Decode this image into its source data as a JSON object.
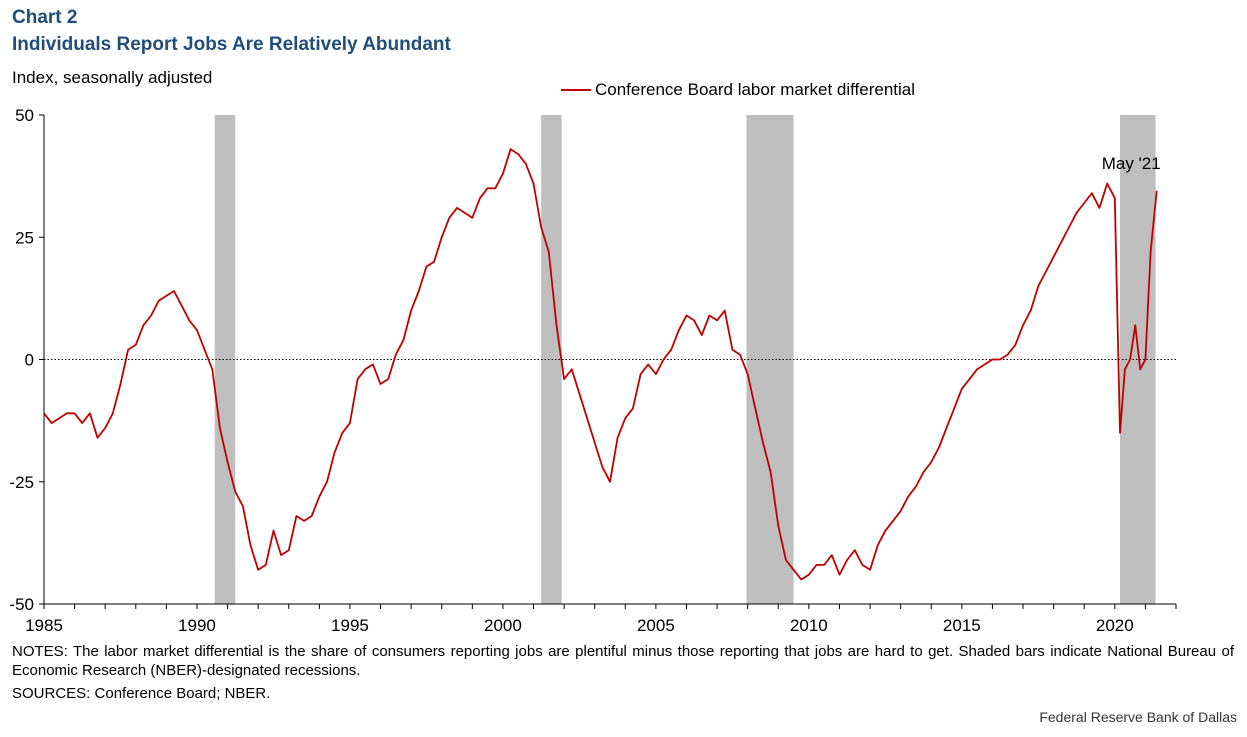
{
  "header": {
    "chart_number": "Chart 2",
    "title": "Individuals Report Jobs Are Relatively Abundant",
    "units": "Index, seasonally adjusted"
  },
  "legend": {
    "label": "Conference Board labor market differential"
  },
  "footer": {
    "notes": "NOTES: The labor market differential is the share of consumers reporting jobs are plentiful minus those reporting that jobs are hard to get. Shaded bars indicate National Bureau of Economic Research (NBER)-designated recessions.",
    "sources": "SOURCES: Conference Board; NBER.",
    "credit": "Federal Reserve Bank of Dallas"
  },
  "colors": {
    "series": "#c00000",
    "recession": "#bfbfbf",
    "title": "#1f4e79"
  },
  "chart_data": {
    "type": "line",
    "title": "Individuals Report Jobs Are Relatively Abundant",
    "ylabel": "Index, seasonally adjusted",
    "xlim": [
      1985,
      2022
    ],
    "ylim": [
      -50,
      50
    ],
    "yticks": [
      50,
      25,
      0,
      -25,
      -50
    ],
    "ytick_labels": [
      "50",
      "25",
      "0",
      "-25",
      "-50"
    ],
    "xticks": [
      1985,
      1990,
      1995,
      2000,
      2005,
      2010,
      2015,
      2020
    ],
    "xtick_labels": [
      "1985",
      "1990",
      "1995",
      "2000",
      "2005",
      "2010",
      "2015",
      "2020"
    ],
    "zero_line": true,
    "recessions": [
      {
        "start": 1990.58,
        "end": 1991.25
      },
      {
        "start": 2001.25,
        "end": 2001.92
      },
      {
        "start": 2007.96,
        "end": 2009.5
      },
      {
        "start": 2020.17,
        "end": 2021.33
      }
    ],
    "annotation": {
      "text": "May '21",
      "x": 2021.37,
      "y": 34.5
    },
    "series": [
      {
        "name": "Conference Board labor market differential",
        "x": [
          1985.0,
          1985.25,
          1985.5,
          1985.75,
          1986.0,
          1986.25,
          1986.5,
          1986.75,
          1987.0,
          1987.25,
          1987.5,
          1987.75,
          1988.0,
          1988.25,
          1988.5,
          1988.75,
          1989.0,
          1989.25,
          1989.5,
          1989.75,
          1990.0,
          1990.25,
          1990.5,
          1990.75,
          1991.0,
          1991.25,
          1991.5,
          1991.75,
          1992.0,
          1992.25,
          1992.5,
          1992.75,
          1993.0,
          1993.25,
          1993.5,
          1993.75,
          1994.0,
          1994.25,
          1994.5,
          1994.75,
          1995.0,
          1995.25,
          1995.5,
          1995.75,
          1996.0,
          1996.25,
          1996.5,
          1996.75,
          1997.0,
          1997.25,
          1997.5,
          1997.75,
          1998.0,
          1998.25,
          1998.5,
          1998.75,
          1999.0,
          1999.25,
          1999.5,
          1999.75,
          2000.0,
          2000.25,
          2000.5,
          2000.75,
          2001.0,
          2001.25,
          2001.5,
          2001.75,
          2002.0,
          2002.25,
          2002.5,
          2002.75,
          2003.0,
          2003.25,
          2003.5,
          2003.75,
          2004.0,
          2004.25,
          2004.5,
          2004.75,
          2005.0,
          2005.25,
          2005.5,
          2005.75,
          2006.0,
          2006.25,
          2006.5,
          2006.75,
          2007.0,
          2007.25,
          2007.5,
          2007.75,
          2008.0,
          2008.25,
          2008.5,
          2008.75,
          2009.0,
          2009.25,
          2009.5,
          2009.75,
          2010.0,
          2010.25,
          2010.5,
          2010.75,
          2011.0,
          2011.25,
          2011.5,
          2011.75,
          2012.0,
          2012.25,
          2012.5,
          2012.75,
          2013.0,
          2013.25,
          2013.5,
          2013.75,
          2014.0,
          2014.25,
          2014.5,
          2014.75,
          2015.0,
          2015.25,
          2015.5,
          2015.75,
          2016.0,
          2016.25,
          2016.5,
          2016.75,
          2017.0,
          2017.25,
          2017.5,
          2017.75,
          2018.0,
          2018.25,
          2018.5,
          2018.75,
          2019.0,
          2019.25,
          2019.5,
          2019.75,
          2020.0,
          2020.17,
          2020.33,
          2020.5,
          2020.67,
          2020.83,
          2021.0,
          2021.17,
          2021.37
        ],
        "y": [
          -11,
          -13,
          -12,
          -11,
          -11,
          -13,
          -11,
          -16,
          -14,
          -11,
          -5,
          2,
          3,
          7,
          9,
          12,
          13,
          14,
          11,
          8,
          6,
          2,
          -2,
          -14,
          -21,
          -27,
          -30,
          -38,
          -43,
          -42,
          -35,
          -40,
          -39,
          -32,
          -33,
          -32,
          -28,
          -25,
          -19,
          -15,
          -13,
          -4,
          -2,
          -1,
          -5,
          -4,
          1,
          4,
          10,
          14,
          19,
          20,
          25,
          29,
          31,
          30,
          29,
          33,
          35,
          35,
          38,
          43,
          42,
          40,
          36,
          27,
          22,
          7,
          -4,
          -2,
          -7,
          -12,
          -17,
          -22,
          -25,
          -16,
          -12,
          -10,
          -3,
          -1,
          -3,
          0,
          2,
          6,
          9,
          8,
          5,
          9,
          8,
          10,
          2,
          1,
          -3,
          -10,
          -17,
          -23,
          -34,
          -41,
          -43,
          -45,
          -44,
          -42,
          -42,
          -40,
          -44,
          -41,
          -39,
          -42,
          -43,
          -38,
          -35,
          -33,
          -31,
          -28,
          -26,
          -23,
          -21,
          -18,
          -14,
          -10,
          -6,
          -4,
          -2,
          -1,
          0,
          0,
          1,
          3,
          7,
          10,
          15,
          18,
          21,
          24,
          27,
          30,
          32,
          34,
          31,
          36,
          33,
          -15,
          -2,
          0,
          7,
          -2,
          0,
          22,
          34.5
        ]
      }
    ]
  }
}
